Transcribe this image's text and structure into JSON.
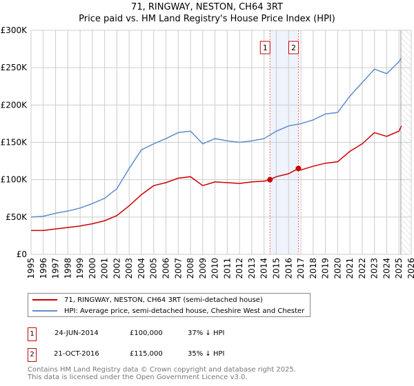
{
  "chart_data": {
    "type": "line",
    "title": "71, RINGWAY, NESTON, CH64 3RT",
    "subtitle": "Price paid vs. HM Land Registry's House Price Index (HPI)",
    "xlim": [
      1995,
      2026
    ],
    "ylim": [
      0,
      300000
    ],
    "x_ticks": [
      "1995",
      "1996",
      "1997",
      "1998",
      "1999",
      "2000",
      "2001",
      "2002",
      "2003",
      "2004",
      "2005",
      "2006",
      "2007",
      "2008",
      "2009",
      "2010",
      "2011",
      "2012",
      "2013",
      "2014",
      "2015",
      "2016",
      "2017",
      "2018",
      "2019",
      "2020",
      "2021",
      "2022",
      "2023",
      "2024",
      "2025",
      "2026"
    ],
    "y_ticks": [
      {
        "v": 0,
        "l": "£0"
      },
      {
        "v": 50000,
        "l": "£50K"
      },
      {
        "v": 100000,
        "l": "£100K"
      },
      {
        "v": 150000,
        "l": "£150K"
      },
      {
        "v": 200000,
        "l": "£200K"
      },
      {
        "v": 250000,
        "l": "£250K"
      },
      {
        "v": 300000,
        "l": "£300K"
      }
    ],
    "grid": true,
    "shaded_range": [
      2014.48,
      2016.8
    ],
    "forecast_hatch_from": 2025.15,
    "series": [
      {
        "name": "71, RINGWAY, NESTON, CH64 3RT (semi-detached house)",
        "color": "#cc0000",
        "x": [
          1995,
          1996,
          1997,
          1998,
          1999,
          2000,
          2001,
          2002,
          2003,
          2004,
          2005,
          2006,
          2007,
          2008,
          2009,
          2010,
          2011,
          2012,
          2013,
          2014,
          2014.48,
          2015,
          2016,
          2016.8,
          2017,
          2018,
          2019,
          2020,
          2021,
          2022,
          2023,
          2024,
          2025,
          2025.2
        ],
        "values": [
          32000,
          32000,
          34000,
          36000,
          38000,
          41000,
          45000,
          52000,
          65000,
          80000,
          92000,
          96000,
          102000,
          104000,
          92000,
          97000,
          96000,
          95000,
          97000,
          98000,
          100000,
          104000,
          108000,
          115000,
          113000,
          118000,
          122000,
          124000,
          138000,
          148000,
          163000,
          158000,
          165000,
          172000
        ]
      },
      {
        "name": "HPI: Average price, semi-detached house, Cheshire West and Chester",
        "color": "#5b8ccc",
        "x": [
          1995,
          1996,
          1997,
          1998,
          1999,
          2000,
          2001,
          2002,
          2003,
          2004,
          2005,
          2006,
          2007,
          2008,
          2009,
          2010,
          2011,
          2012,
          2013,
          2014,
          2015,
          2016,
          2017,
          2018,
          2019,
          2020,
          2021,
          2022,
          2023,
          2024,
          2025,
          2025.2
        ],
        "values": [
          50000,
          51000,
          55000,
          58000,
          62000,
          68000,
          75000,
          88000,
          115000,
          140000,
          148000,
          155000,
          163000,
          165000,
          148000,
          155000,
          152000,
          150000,
          152000,
          155000,
          165000,
          172000,
          175000,
          180000,
          188000,
          190000,
          212000,
          230000,
          248000,
          242000,
          258000,
          263000
        ]
      }
    ],
    "markers": [
      {
        "label": "1",
        "x": 2014.48,
        "value": 100000
      },
      {
        "label": "2",
        "x": 2016.8,
        "value": 115000
      }
    ]
  },
  "legend": {
    "red": "71, RINGWAY, NESTON, CH64 3RT (semi-detached house)",
    "blue": "HPI: Average price, semi-detached house, Cheshire West and Chester"
  },
  "sales": [
    {
      "n": "1",
      "date": "24-JUN-2014",
      "price": "£100,000",
      "hpi": "37% ↓ HPI"
    },
    {
      "n": "2",
      "date": "21-OCT-2016",
      "price": "£115,000",
      "hpi": "35% ↓ HPI"
    }
  ],
  "footer": {
    "line1": "Contains HM Land Registry data © Crown copyright and database right 2025.",
    "line2": "This data is licensed under the Open Government Licence v3.0."
  }
}
